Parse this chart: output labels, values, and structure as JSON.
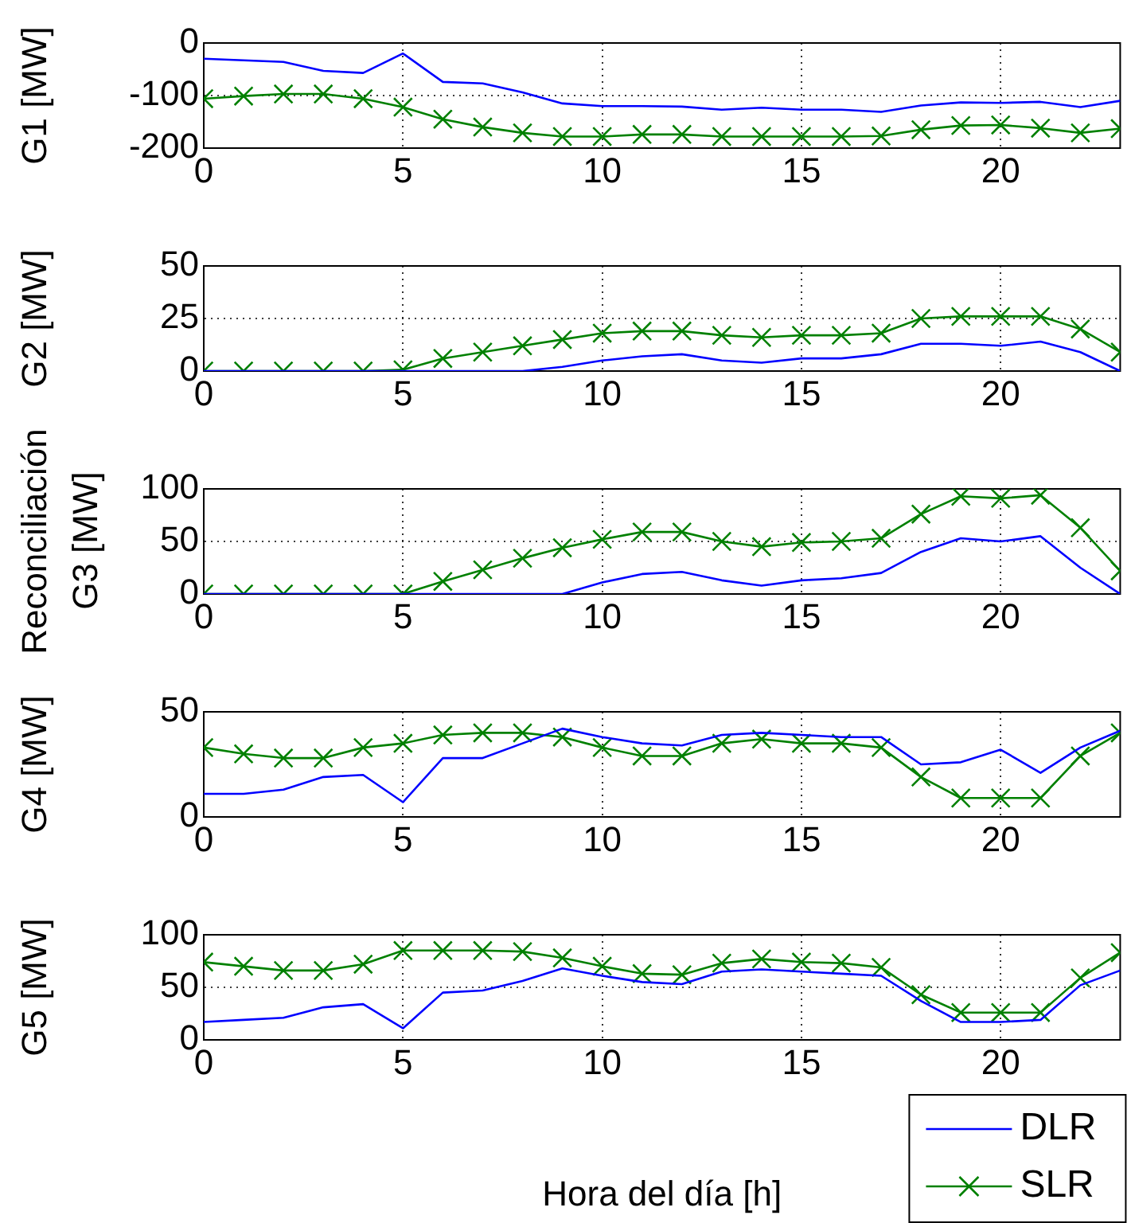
{
  "chart_data": [
    {
      "type": "line",
      "ylabel": "G1 [MW]",
      "x": [
        0,
        1,
        2,
        3,
        4,
        5,
        6,
        7,
        8,
        9,
        10,
        11,
        12,
        13,
        14,
        15,
        16,
        17,
        18,
        19,
        20,
        21,
        22,
        23
      ],
      "xlim": [
        0,
        23
      ],
      "xticks": [
        0,
        5,
        10,
        15,
        20
      ],
      "ylim": [
        -200,
        0
      ],
      "yticks": [
        -200,
        -100,
        0
      ],
      "grid": true,
      "legend": false,
      "series": [
        {
          "color": "#0000ff",
          "values": [
            -30,
            -33,
            -36,
            -53,
            -57,
            -20,
            -74,
            -77,
            -94,
            -115,
            -120,
            -120,
            -121,
            -127,
            -123,
            -127,
            -127,
            -131,
            -119,
            -113,
            -114,
            -112,
            -122,
            -110
          ]
        },
        {
          "color": "#008000",
          "marker": "cross",
          "values": [
            -106,
            -101,
            -97,
            -97,
            -106,
            -122,
            -145,
            -160,
            -171,
            -178,
            -178,
            -174,
            -174,
            -178,
            -178,
            -178,
            -178,
            -177,
            -165,
            -157,
            -156,
            -162,
            -171,
            -163
          ]
        }
      ]
    },
    {
      "type": "line",
      "ylabel": "G2 [MW]",
      "x": [
        0,
        1,
        2,
        3,
        4,
        5,
        6,
        7,
        8,
        9,
        10,
        11,
        12,
        13,
        14,
        15,
        16,
        17,
        18,
        19,
        20,
        21,
        22,
        23
      ],
      "xlim": [
        0,
        23
      ],
      "xticks": [
        0,
        5,
        10,
        15,
        20
      ],
      "ylim": [
        0,
        50
      ],
      "yticks": [
        0,
        25,
        50
      ],
      "grid": true,
      "legend": false,
      "series": [
        {
          "color": "#0000ff",
          "values": [
            0,
            0,
            0,
            0,
            0,
            0,
            0,
            0,
            0,
            2,
            5,
            7,
            8,
            5,
            4,
            6,
            6,
            8,
            13,
            13,
            12,
            14,
            9,
            0
          ]
        },
        {
          "color": "#008000",
          "marker": "cross",
          "values": [
            0,
            0,
            0,
            0,
            0,
            0.6,
            6,
            9,
            12,
            15,
            18,
            19,
            19,
            17,
            16,
            17,
            17,
            18,
            25,
            26,
            26,
            26,
            20,
            9
          ]
        }
      ]
    },
    {
      "type": "line",
      "ylabel": "Reconciliación\nG3 [MW]",
      "x": [
        0,
        1,
        2,
        3,
        4,
        5,
        6,
        7,
        8,
        9,
        10,
        11,
        12,
        13,
        14,
        15,
        16,
        17,
        18,
        19,
        20,
        21,
        22,
        23
      ],
      "xlim": [
        0,
        23
      ],
      "xticks": [
        0,
        5,
        10,
        15,
        20
      ],
      "ylim": [
        0,
        100
      ],
      "yticks": [
        0,
        50,
        100
      ],
      "grid": true,
      "legend": false,
      "series": [
        {
          "color": "#0000ff",
          "values": [
            0,
            0,
            0,
            0,
            0,
            0,
            0,
            0,
            0,
            0,
            11,
            19,
            21,
            13,
            8,
            13,
            15,
            20,
            40,
            53,
            50,
            55,
            25,
            0
          ]
        },
        {
          "color": "#008000",
          "marker": "cross",
          "values": [
            0,
            0,
            0,
            0,
            0,
            0,
            12,
            23,
            34,
            44,
            52,
            59,
            59,
            50,
            45,
            49,
            50,
            53,
            76,
            93,
            91,
            94,
            63,
            22
          ]
        }
      ]
    },
    {
      "type": "line",
      "ylabel": "G4 [MW]",
      "x": [
        0,
        1,
        2,
        3,
        4,
        5,
        6,
        7,
        8,
        9,
        10,
        11,
        12,
        13,
        14,
        15,
        16,
        17,
        18,
        19,
        20,
        21,
        22,
        23
      ],
      "xlim": [
        0,
        23
      ],
      "xticks": [
        0,
        5,
        10,
        15,
        20
      ],
      "ylim": [
        0,
        50
      ],
      "yticks": [
        0,
        50
      ],
      "grid": true,
      "legend": false,
      "series": [
        {
          "color": "#0000ff",
          "values": [
            11,
            11,
            13,
            19,
            20,
            7,
            28,
            28,
            35,
            42,
            38,
            35,
            34,
            39,
            40,
            39,
            38,
            38,
            25,
            26,
            32,
            21,
            33,
            41
          ]
        },
        {
          "color": "#008000",
          "marker": "cross",
          "values": [
            33,
            30,
            28,
            28,
            33,
            35,
            39,
            40,
            40,
            38,
            33,
            29,
            29,
            35,
            37,
            35,
            35,
            33,
            19,
            9,
            9,
            9,
            29,
            40
          ]
        }
      ]
    },
    {
      "type": "line",
      "ylabel": "G5 [MW]",
      "xlabel": "Hora del día [h]",
      "x": [
        0,
        1,
        2,
        3,
        4,
        5,
        6,
        7,
        8,
        9,
        10,
        11,
        12,
        13,
        14,
        15,
        16,
        17,
        18,
        19,
        20,
        21,
        22,
        23
      ],
      "xlim": [
        0,
        23
      ],
      "xticks": [
        0,
        5,
        10,
        15,
        20
      ],
      "ylim": [
        0,
        100
      ],
      "yticks": [
        0,
        50,
        100
      ],
      "grid": true,
      "legend": "bottom right",
      "series": [
        {
          "name": "DLR",
          "color": "#0000ff",
          "values": [
            17,
            19,
            21,
            31,
            34,
            11,
            45,
            47,
            56,
            68,
            61,
            55,
            53,
            65,
            67,
            65,
            63,
            61,
            37,
            17,
            17,
            19,
            52,
            66
          ]
        },
        {
          "name": "SLR",
          "color": "#008000",
          "marker": "cross",
          "values": [
            74,
            70,
            66,
            66,
            72,
            85,
            85,
            85,
            84,
            78,
            70,
            63,
            62,
            73,
            77,
            74,
            73,
            69,
            43,
            26,
            26,
            26,
            59,
            83
          ]
        }
      ]
    }
  ]
}
